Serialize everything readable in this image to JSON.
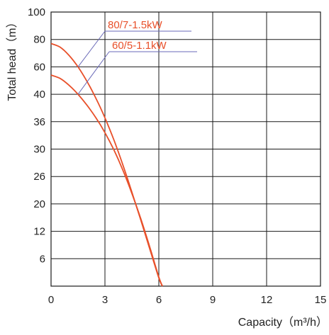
{
  "chart_data": {
    "type": "line",
    "title": "",
    "xlabel": "Capacity（m³/h）",
    "ylabel": "Total head（m）",
    "xlim": [
      0,
      15
    ],
    "x_ticks": [
      0,
      3,
      6,
      9,
      12,
      15
    ],
    "y_tick_labels": [
      "100",
      "80",
      "60",
      "40",
      "36",
      "30",
      "26",
      "20",
      "12",
      "6"
    ],
    "grid": true,
    "legend": "annotations",
    "series": [
      {
        "name": "80/7-1.5kW",
        "color": "#e8502a",
        "x": [
          0,
          0.5,
          1,
          1.5,
          2,
          2.5,
          3,
          3.5,
          4,
          4.5,
          5,
          5.5,
          6,
          6.2
        ],
        "y_gridline_units": [
          8.85,
          8.72,
          8.42,
          8.0,
          7.47,
          6.85,
          6.14,
          5.33,
          4.42,
          3.43,
          2.4,
          1.35,
          0.3,
          0.0
        ]
      },
      {
        "name": "60/5-1.1kW",
        "color": "#e8502a",
        "x": [
          0,
          0.5,
          1,
          1.5,
          2,
          2.5,
          3,
          3.5,
          4,
          4.5,
          5,
          5.5,
          6,
          6.2
        ],
        "y_gridline_units": [
          7.7,
          7.58,
          7.33,
          7.0,
          6.6,
          6.14,
          5.6,
          4.97,
          4.23,
          3.38,
          2.45,
          1.42,
          0.33,
          0.0
        ]
      }
    ],
    "annotations": [
      {
        "text": "80/7-1.5kW",
        "series": 0
      },
      {
        "text": "60/5-1.1kW",
        "series": 1
      }
    ]
  }
}
